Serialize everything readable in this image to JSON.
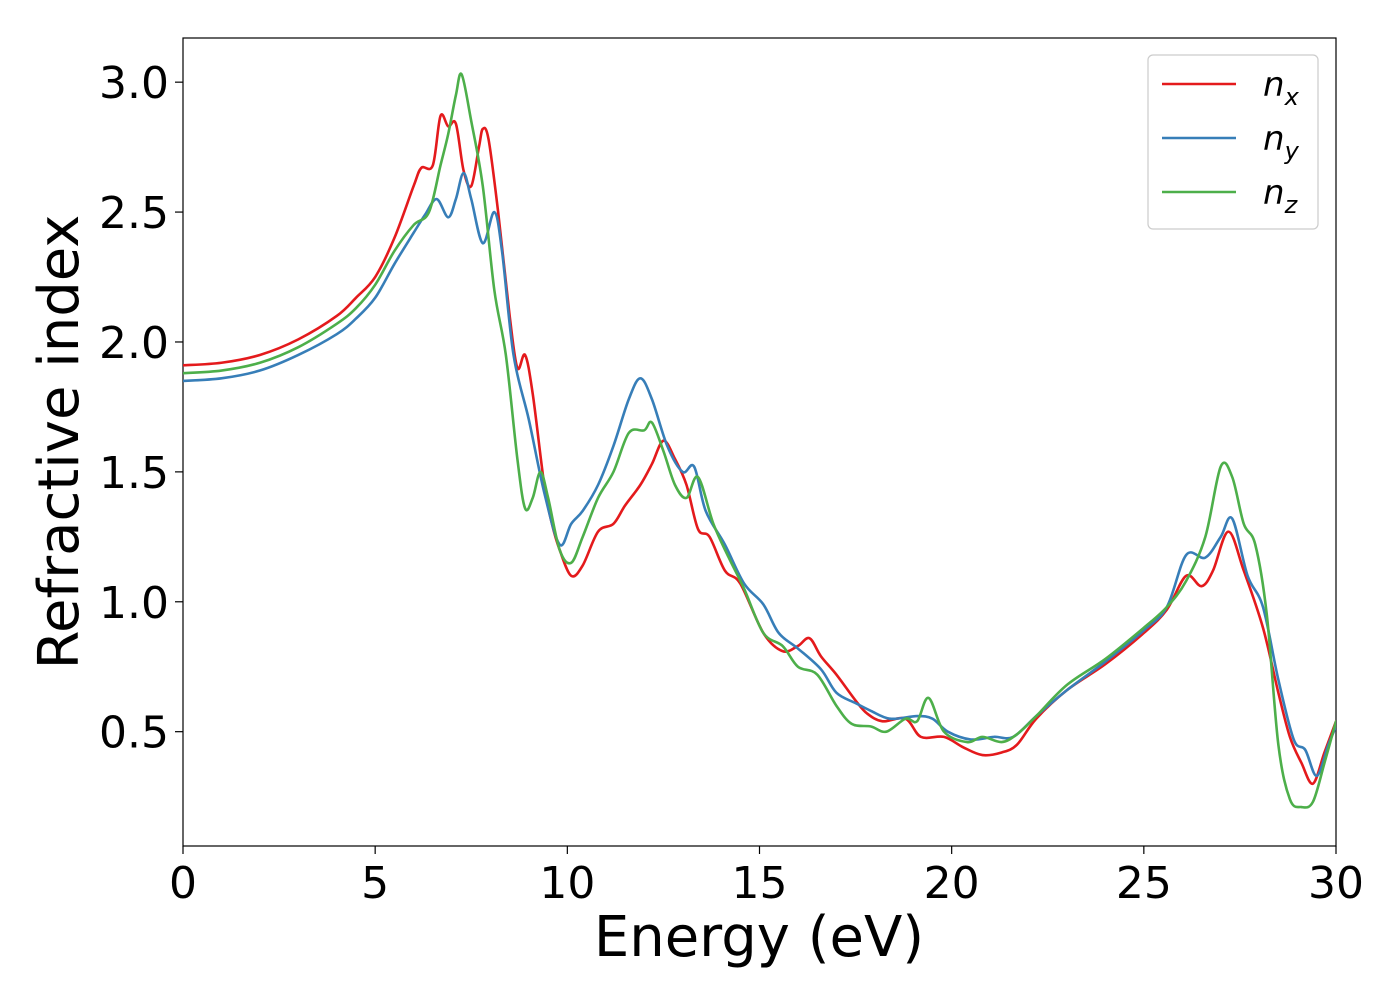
{
  "chart_data": {
    "type": "line",
    "title": "",
    "xlabel": "Energy (eV)",
    "ylabel": "Refractive index",
    "xlim": [
      0,
      30
    ],
    "ylim": [
      0.06,
      3.17
    ],
    "xticks": [
      0,
      5,
      10,
      15,
      20,
      25,
      30
    ],
    "yticks": [
      0.5,
      1.0,
      1.5,
      2.0,
      2.5,
      3.0
    ],
    "xtick_labels": [
      "0",
      "5",
      "10",
      "15",
      "20",
      "25",
      "30"
    ],
    "ytick_labels": [
      "0.5",
      "1.0",
      "1.5",
      "2.0",
      "2.5",
      "3.0"
    ],
    "grid": false,
    "legend_position": "top-right",
    "series": [
      {
        "name": "n",
        "subscript": "x",
        "color": "#e41a1c",
        "points": [
          [
            0,
            1.91
          ],
          [
            1,
            1.92
          ],
          [
            2,
            1.95
          ],
          [
            3,
            2.01
          ],
          [
            4,
            2.1
          ],
          [
            4.5,
            2.17
          ],
          [
            5,
            2.25
          ],
          [
            5.5,
            2.4
          ],
          [
            6,
            2.6
          ],
          [
            6.2,
            2.67
          ],
          [
            6.5,
            2.68
          ],
          [
            6.7,
            2.87
          ],
          [
            6.9,
            2.83
          ],
          [
            7.1,
            2.84
          ],
          [
            7.3,
            2.66
          ],
          [
            7.5,
            2.6
          ],
          [
            7.7,
            2.75
          ],
          [
            7.8,
            2.82
          ],
          [
            7.95,
            2.78
          ],
          [
            8.2,
            2.5
          ],
          [
            8.5,
            2.1
          ],
          [
            8.7,
            1.9
          ],
          [
            8.9,
            1.95
          ],
          [
            9.1,
            1.8
          ],
          [
            9.4,
            1.45
          ],
          [
            9.6,
            1.3
          ],
          [
            9.8,
            1.2
          ],
          [
            10.1,
            1.1
          ],
          [
            10.4,
            1.14
          ],
          [
            10.8,
            1.27
          ],
          [
            11.2,
            1.3
          ],
          [
            11.5,
            1.37
          ],
          [
            11.9,
            1.45
          ],
          [
            12.2,
            1.53
          ],
          [
            12.5,
            1.62
          ],
          [
            12.8,
            1.55
          ],
          [
            13.1,
            1.45
          ],
          [
            13.4,
            1.28
          ],
          [
            13.7,
            1.25
          ],
          [
            14.1,
            1.12
          ],
          [
            14.5,
            1.07
          ],
          [
            15.1,
            0.88
          ],
          [
            15.6,
            0.81
          ],
          [
            16,
            0.83
          ],
          [
            16.3,
            0.86
          ],
          [
            16.6,
            0.79
          ],
          [
            17,
            0.72
          ],
          [
            17.5,
            0.62
          ],
          [
            17.8,
            0.57
          ],
          [
            18.2,
            0.54
          ],
          [
            18.8,
            0.55
          ],
          [
            19.2,
            0.48
          ],
          [
            19.8,
            0.48
          ],
          [
            20.3,
            0.44
          ],
          [
            20.8,
            0.41
          ],
          [
            21.3,
            0.42
          ],
          [
            21.7,
            0.45
          ],
          [
            22.2,
            0.55
          ],
          [
            23,
            0.66
          ],
          [
            24,
            0.76
          ],
          [
            25,
            0.88
          ],
          [
            25.6,
            0.97
          ],
          [
            26.1,
            1.1
          ],
          [
            26.5,
            1.06
          ],
          [
            26.8,
            1.12
          ],
          [
            27.2,
            1.27
          ],
          [
            27.6,
            1.12
          ],
          [
            28.1,
            0.9
          ],
          [
            28.5,
            0.65
          ],
          [
            28.8,
            0.48
          ],
          [
            29.1,
            0.38
          ],
          [
            29.4,
            0.3
          ],
          [
            29.7,
            0.42
          ],
          [
            30,
            0.54
          ]
        ]
      },
      {
        "name": "n",
        "subscript": "y",
        "color": "#377eb8",
        "points": [
          [
            0,
            1.85
          ],
          [
            1,
            1.86
          ],
          [
            2,
            1.89
          ],
          [
            3,
            1.95
          ],
          [
            4,
            2.03
          ],
          [
            4.5,
            2.09
          ],
          [
            5,
            2.17
          ],
          [
            5.5,
            2.3
          ],
          [
            6,
            2.42
          ],
          [
            6.3,
            2.49
          ],
          [
            6.6,
            2.55
          ],
          [
            6.9,
            2.48
          ],
          [
            7.1,
            2.55
          ],
          [
            7.3,
            2.65
          ],
          [
            7.5,
            2.55
          ],
          [
            7.8,
            2.38
          ],
          [
            8.1,
            2.5
          ],
          [
            8.3,
            2.35
          ],
          [
            8.6,
            1.95
          ],
          [
            9,
            1.7
          ],
          [
            9.4,
            1.42
          ],
          [
            9.8,
            1.22
          ],
          [
            10.1,
            1.3
          ],
          [
            10.4,
            1.35
          ],
          [
            10.8,
            1.45
          ],
          [
            11.2,
            1.6
          ],
          [
            11.6,
            1.78
          ],
          [
            11.9,
            1.86
          ],
          [
            12.2,
            1.78
          ],
          [
            12.6,
            1.6
          ],
          [
            13,
            1.5
          ],
          [
            13.3,
            1.52
          ],
          [
            13.6,
            1.35
          ],
          [
            14.1,
            1.22
          ],
          [
            14.6,
            1.07
          ],
          [
            15.1,
            0.99
          ],
          [
            15.5,
            0.88
          ],
          [
            16,
            0.82
          ],
          [
            16.6,
            0.74
          ],
          [
            17,
            0.65
          ],
          [
            17.5,
            0.61
          ],
          [
            17.9,
            0.58
          ],
          [
            18.4,
            0.55
          ],
          [
            19.1,
            0.56
          ],
          [
            19.5,
            0.55
          ],
          [
            19.9,
            0.5
          ],
          [
            20.5,
            0.47
          ],
          [
            21.1,
            0.48
          ],
          [
            21.6,
            0.48
          ],
          [
            22.2,
            0.56
          ],
          [
            23,
            0.66
          ],
          [
            24,
            0.77
          ],
          [
            25,
            0.89
          ],
          [
            25.6,
            0.98
          ],
          [
            26.1,
            1.18
          ],
          [
            26.6,
            1.17
          ],
          [
            27,
            1.25
          ],
          [
            27.3,
            1.32
          ],
          [
            27.7,
            1.1
          ],
          [
            28.1,
            0.98
          ],
          [
            28.5,
            0.7
          ],
          [
            28.9,
            0.47
          ],
          [
            29.2,
            0.43
          ],
          [
            29.5,
            0.33
          ],
          [
            29.8,
            0.45
          ],
          [
            30,
            0.52
          ]
        ]
      },
      {
        "name": "n",
        "subscript": "z",
        "color": "#4daf4a",
        "points": [
          [
            0,
            1.88
          ],
          [
            1,
            1.89
          ],
          [
            2,
            1.92
          ],
          [
            3,
            1.98
          ],
          [
            4,
            2.07
          ],
          [
            4.5,
            2.13
          ],
          [
            5,
            2.22
          ],
          [
            5.5,
            2.35
          ],
          [
            6,
            2.45
          ],
          [
            6.4,
            2.5
          ],
          [
            6.7,
            2.68
          ],
          [
            6.9,
            2.8
          ],
          [
            7.1,
            2.95
          ],
          [
            7.25,
            3.03
          ],
          [
            7.5,
            2.85
          ],
          [
            7.8,
            2.6
          ],
          [
            8.1,
            2.2
          ],
          [
            8.4,
            1.95
          ],
          [
            8.7,
            1.55
          ],
          [
            8.9,
            1.36
          ],
          [
            9.1,
            1.4
          ],
          [
            9.3,
            1.5
          ],
          [
            9.5,
            1.4
          ],
          [
            9.8,
            1.2
          ],
          [
            10.1,
            1.15
          ],
          [
            10.4,
            1.25
          ],
          [
            10.8,
            1.4
          ],
          [
            11.2,
            1.5
          ],
          [
            11.6,
            1.65
          ],
          [
            12,
            1.66
          ],
          [
            12.2,
            1.69
          ],
          [
            12.5,
            1.58
          ],
          [
            12.8,
            1.45
          ],
          [
            13.1,
            1.4
          ],
          [
            13.4,
            1.48
          ],
          [
            13.8,
            1.3
          ],
          [
            14.2,
            1.17
          ],
          [
            14.6,
            1.05
          ],
          [
            15.1,
            0.88
          ],
          [
            15.6,
            0.83
          ],
          [
            16,
            0.75
          ],
          [
            16.5,
            0.72
          ],
          [
            17,
            0.6
          ],
          [
            17.4,
            0.53
          ],
          [
            17.9,
            0.52
          ],
          [
            18.3,
            0.5
          ],
          [
            18.8,
            0.55
          ],
          [
            19.1,
            0.54
          ],
          [
            19.4,
            0.63
          ],
          [
            19.8,
            0.5
          ],
          [
            20.4,
            0.46
          ],
          [
            20.8,
            0.48
          ],
          [
            21.3,
            0.46
          ],
          [
            21.7,
            0.49
          ],
          [
            22.2,
            0.56
          ],
          [
            23,
            0.68
          ],
          [
            24,
            0.78
          ],
          [
            25,
            0.9
          ],
          [
            25.6,
            0.98
          ],
          [
            26.1,
            1.08
          ],
          [
            26.6,
            1.25
          ],
          [
            27,
            1.52
          ],
          [
            27.3,
            1.48
          ],
          [
            27.6,
            1.3
          ],
          [
            27.9,
            1.22
          ],
          [
            28.2,
            0.95
          ],
          [
            28.5,
            0.45
          ],
          [
            28.8,
            0.24
          ],
          [
            29.1,
            0.21
          ],
          [
            29.4,
            0.23
          ],
          [
            29.7,
            0.38
          ],
          [
            30,
            0.54
          ]
        ]
      }
    ]
  }
}
